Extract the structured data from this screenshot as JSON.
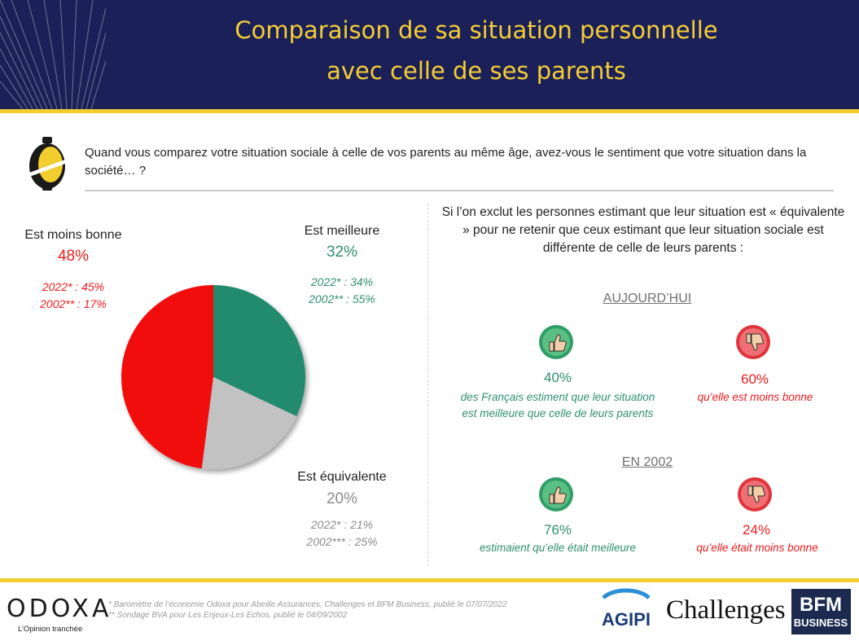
{
  "header": {
    "title_line1": "Comparaison de sa situation personnelle",
    "title_line2": "avec celle de ses parents"
  },
  "question": "Quand vous comparez votre situation sociale à celle de vos parents au même âge, avez-vous le sentiment que votre situation dans la société… ?",
  "colors": {
    "navy": "#1b2158",
    "yellow": "#f2cd2e",
    "red": "#f20d0d",
    "green": "#248b6e",
    "grey": "#c2c2c2"
  },
  "chart_data": {
    "type": "pie",
    "slices": [
      {
        "label": "Est meilleure",
        "value": 32,
        "value_label": "32%",
        "color": "#248b6e",
        "history": [
          "2022* : 34%",
          "2002** : 55%"
        ]
      },
      {
        "label": "Est équivalente",
        "value": 20,
        "value_label": "20%",
        "color": "#c2c2c2",
        "history": [
          "2022* : 21%",
          "2002*** : 25%"
        ]
      },
      {
        "label": "Est moins bonne",
        "value": 48,
        "value_label": "48%",
        "color": "#f20d0d",
        "history": [
          "2022* : 45%",
          "2002** : 17%"
        ]
      }
    ]
  },
  "right_panel": {
    "intro": "Si l’on exclut les personnes estimant que leur situation est « équivalente » pour ne retenir que ceux estimant que leur situation sociale est différente de celle de leurs parents :",
    "sections": [
      {
        "heading": "AUJOURD’HUI",
        "positive": {
          "icon": "thumbs-up-icon",
          "pct": "40%",
          "text_line1": "des Français estiment que leur situation",
          "text_line2": "est meilleure que celle de leurs parents"
        },
        "negative": {
          "icon": "thumbs-down-icon",
          "pct": "60%",
          "text_line1": "qu’elle est moins bonne"
        }
      },
      {
        "heading": "EN 2002",
        "positive": {
          "icon": "thumbs-up-icon",
          "pct": "76%",
          "text_line1": "estimaient qu’elle était meilleure"
        },
        "negative": {
          "icon": "thumbs-down-icon",
          "pct": "24%",
          "text_line1": "qu’elle était moins bonne"
        }
      }
    ]
  },
  "footer": {
    "brand": "ODOXA",
    "tagline": "L’Opinion tranchée",
    "note1": "* Baromètre de l’économie Odoxa  pour Abeille Assurances, Challenges et BFM Business, publié le 07/07/2022",
    "note2": "** Sondage BVA pour Les Enjeux-Les Echos, publié le 04/09/2002",
    "partners": [
      "AGIPI",
      "Challenges",
      "BFM",
      "BUSINESS"
    ]
  }
}
